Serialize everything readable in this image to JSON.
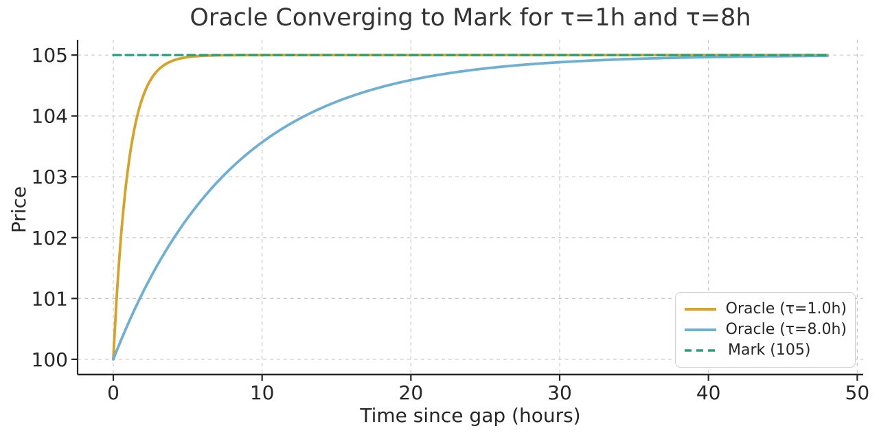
{
  "chart_data": {
    "type": "line",
    "title": "Oracle Converging to Mark for τ=1h and τ=8h",
    "xlabel": "Time since gap (hours)",
    "ylabel": "Price",
    "xlim": [
      -2.4,
      50.4
    ],
    "ylim": [
      99.75,
      105.25
    ],
    "x_ticks": [
      0,
      10,
      20,
      30,
      40,
      50
    ],
    "y_ticks": [
      100,
      101,
      102,
      103,
      104,
      105
    ],
    "grid": true,
    "grid_style": "dashed",
    "grid_color": "#cccccc",
    "spine_color": "#262626",
    "text_color": "#262626",
    "legend_position": "lower right",
    "series": [
      {
        "name": "Oracle (τ=1.0h)",
        "kind": "exponential_convergence",
        "color": "#D6A227",
        "line_style": "solid",
        "line_width": 3.8,
        "start": 100,
        "mark": 105,
        "tau_hours": 1.0,
        "t_range": [
          0,
          48
        ],
        "sample_x": [
          0,
          0.25,
          0.5,
          0.75,
          1,
          1.5,
          2,
          2.5,
          3,
          4,
          5,
          6,
          8,
          12,
          24,
          48
        ],
        "sample_y": [
          100.0,
          101.11,
          101.97,
          102.64,
          103.16,
          103.88,
          104.32,
          104.59,
          104.75,
          104.91,
          104.97,
          104.99,
          105.0,
          105.0,
          105.0,
          105.0
        ]
      },
      {
        "name": "Oracle (τ=8.0h)",
        "kind": "exponential_convergence",
        "color": "#6FB0D2",
        "line_style": "solid",
        "line_width": 3.8,
        "start": 100,
        "mark": 105,
        "tau_hours": 8.0,
        "t_range": [
          0,
          48
        ],
        "sample_x": [
          0,
          2,
          4,
          6,
          8,
          10,
          12,
          14,
          16,
          20,
          24,
          28,
          32,
          36,
          40,
          44,
          48
        ],
        "sample_y": [
          100.0,
          101.11,
          101.97,
          102.64,
          103.16,
          103.57,
          103.88,
          104.13,
          104.32,
          104.59,
          104.75,
          104.85,
          104.91,
          104.94,
          104.97,
          104.98,
          104.99
        ]
      },
      {
        "name": "Mark (105)",
        "kind": "hline",
        "color": "#23A07E",
        "line_style": "dashed",
        "line_width": 3.2,
        "value": 105,
        "t_range": [
          0,
          48
        ]
      }
    ]
  }
}
